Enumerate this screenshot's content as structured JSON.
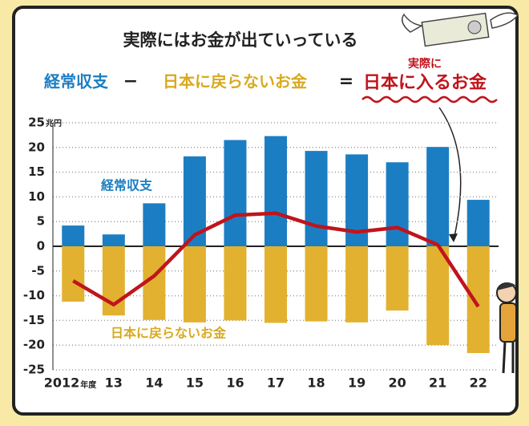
{
  "chart_data": {
    "type": "bar",
    "title": "実際にはお金が出ていっている",
    "formula_minus": "−",
    "formula_equals": "=",
    "annotation": "実際に",
    "x_unit": "年度",
    "y_unit": "兆円",
    "categories": [
      "2012",
      "13",
      "14",
      "15",
      "16",
      "17",
      "18",
      "19",
      "20",
      "21",
      "22"
    ],
    "series": [
      {
        "name": "経常収支",
        "type": "bar",
        "color": "#1b7ec3",
        "values": [
          4.2,
          2.4,
          8.7,
          18.2,
          21.5,
          22.3,
          19.3,
          18.6,
          17.0,
          20.1,
          9.4
        ]
      },
      {
        "name": "日本に戻らないお金",
        "type": "bar",
        "color": "#e2b12f",
        "values": [
          -11.2,
          -14.0,
          -14.9,
          -15.4,
          -15.0,
          -15.5,
          -15.2,
          -15.4,
          -13.0,
          -20.0,
          -21.6
        ]
      },
      {
        "name": "日本に入るお金",
        "type": "line",
        "color": "#c0141c",
        "values": [
          -7.0,
          -11.8,
          -6.0,
          2.3,
          6.3,
          6.7,
          4.1,
          2.9,
          3.8,
          0.3,
          -12.2
        ]
      }
    ],
    "ylim": [
      -25,
      25
    ],
    "yticks": [
      -25,
      -20,
      -15,
      -10,
      -5,
      0,
      5,
      10,
      15,
      20,
      25
    ],
    "grid": true
  }
}
